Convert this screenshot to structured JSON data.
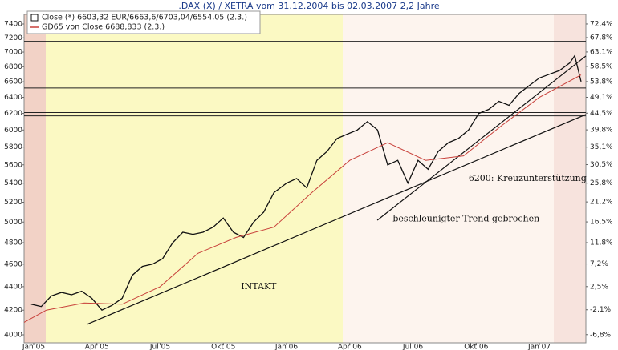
{
  "chart_data": {
    "type": "line",
    "title": ".DAX (X) / XETRA vom 31.12.2004 bis 02.03.2007 2,2 Jahre",
    "log": true,
    "xlim": [
      2004.962,
      2007.184
    ],
    "xticks": [
      {
        "value": 2005.0,
        "label": "Jan 05"
      },
      {
        "value": 2005.25,
        "label": "Apr 05"
      },
      {
        "value": 2005.5,
        "label": "Jul 05"
      },
      {
        "value": 2005.75,
        "label": "Okt 05"
      },
      {
        "value": 2006.0,
        "label": "Jan 06"
      },
      {
        "value": 2006.25,
        "label": "Apr 06"
      },
      {
        "value": 2006.5,
        "label": "Jul 06"
      },
      {
        "value": 2006.75,
        "label": "Okt 06"
      },
      {
        "value": 2007.0,
        "label": "Jan 07"
      }
    ],
    "ylim": [
      3937,
      7542
    ],
    "yticks": [
      4000,
      4200,
      4400,
      4600,
      4800,
      5000,
      5200,
      5400,
      5600,
      5800,
      6000,
      6200,
      6400,
      6600,
      6800,
      7000,
      7200,
      7400
    ],
    "y2lim": [
      -8.3,
      75.7
    ],
    "y2ticks": [
      {
        "value": -6.8,
        "label": "-6,8%"
      },
      {
        "value": -2.1,
        "label": "-2,1%"
      },
      {
        "value": 2.5,
        "label": "2,5%"
      },
      {
        "value": 7.2,
        "label": "7,2%"
      },
      {
        "value": 11.8,
        "label": "11,8%"
      },
      {
        "value": 16.5,
        "label": "16,5%"
      },
      {
        "value": 21.2,
        "label": "21,2%"
      },
      {
        "value": 25.8,
        "label": "25,8%"
      },
      {
        "value": 30.5,
        "label": "30,5%"
      },
      {
        "value": 35.1,
        "label": "35,1%"
      },
      {
        "value": 39.8,
        "label": "39,8%"
      },
      {
        "value": 44.5,
        "label": "44,5%"
      },
      {
        "value": 49.1,
        "label": "49,1%"
      },
      {
        "value": 53.8,
        "label": "53,8%"
      },
      {
        "value": 58.5,
        "label": "58,5%"
      },
      {
        "value": 63.1,
        "label": "63,1%"
      },
      {
        "value": 67.8,
        "label": "67,8%"
      },
      {
        "value": 72.4,
        "label": "72,4%"
      }
    ],
    "series": [
      {
        "name": "Close (*) 6603,32 EUR/6663,6/6703,04/6554,05 (2.3.)",
        "color": "#111111",
        "x": [
          2004.99,
          2005.03,
          2005.07,
          2005.11,
          2005.15,
          2005.19,
          2005.23,
          2005.27,
          2005.31,
          2005.35,
          2005.39,
          2005.43,
          2005.47,
          2005.51,
          2005.55,
          2005.59,
          2005.63,
          2005.67,
          2005.71,
          2005.75,
          2005.79,
          2005.83,
          2005.87,
          2005.91,
          2005.95,
          2006.0,
          2006.04,
          2006.08,
          2006.12,
          2006.16,
          2006.2,
          2006.24,
          2006.28,
          2006.32,
          2006.36,
          2006.4,
          2006.44,
          2006.48,
          2006.52,
          2006.56,
          2006.6,
          2006.64,
          2006.68,
          2006.72,
          2006.76,
          2006.8,
          2006.84,
          2006.88,
          2006.92,
          2006.96,
          2007.0,
          2007.04,
          2007.08,
          2007.12,
          2007.14,
          2007.165
        ],
        "values": [
          4250,
          4230,
          4320,
          4350,
          4330,
          4360,
          4300,
          4200,
          4240,
          4300,
          4500,
          4580,
          4600,
          4650,
          4800,
          4900,
          4880,
          4900,
          4950,
          5040,
          4900,
          4850,
          5000,
          5100,
          5300,
          5400,
          5450,
          5350,
          5650,
          5750,
          5900,
          5950,
          6000,
          6100,
          6000,
          5600,
          5650,
          5400,
          5650,
          5550,
          5750,
          5850,
          5900,
          6000,
          6200,
          6250,
          6350,
          6300,
          6450,
          6550,
          6650,
          6700,
          6750,
          6850,
          6950,
          6603
        ]
      },
      {
        "name": "GD65 von Close 6688,833 (2.3.)",
        "color": "#c8403a",
        "x": [
          2004.962,
          2005.05,
          2005.2,
          2005.35,
          2005.5,
          2005.65,
          2005.8,
          2005.95,
          2006.1,
          2006.25,
          2006.4,
          2006.55,
          2006.7,
          2006.85,
          2007.0,
          2007.165
        ],
        "values": [
          4100,
          4200,
          4260,
          4250,
          4400,
          4700,
          4850,
          4950,
          5300,
          5650,
          5850,
          5650,
          5700,
          6050,
          6400,
          6690
        ]
      }
    ],
    "hlines": [
      7150,
      6520,
      6210,
      6170
    ],
    "trendlines": [
      {
        "x": [
          2005.21,
          2007.184
        ],
        "values": [
          4083,
          6187
        ]
      },
      {
        "x": [
          2006.359,
          2007.184
        ],
        "values": [
          5018,
          6946
        ]
      }
    ],
    "annotations": [
      {
        "text": "INTAKT",
        "x": 2005.82,
        "y": 4400
      },
      {
        "text": "6200: Kreuzunterstützung",
        "x": 2006.72,
        "y": 5450
      },
      {
        "text": "beschleunigter Trend gebrochen",
        "x": 2006.42,
        "y": 5030
      }
    ]
  }
}
